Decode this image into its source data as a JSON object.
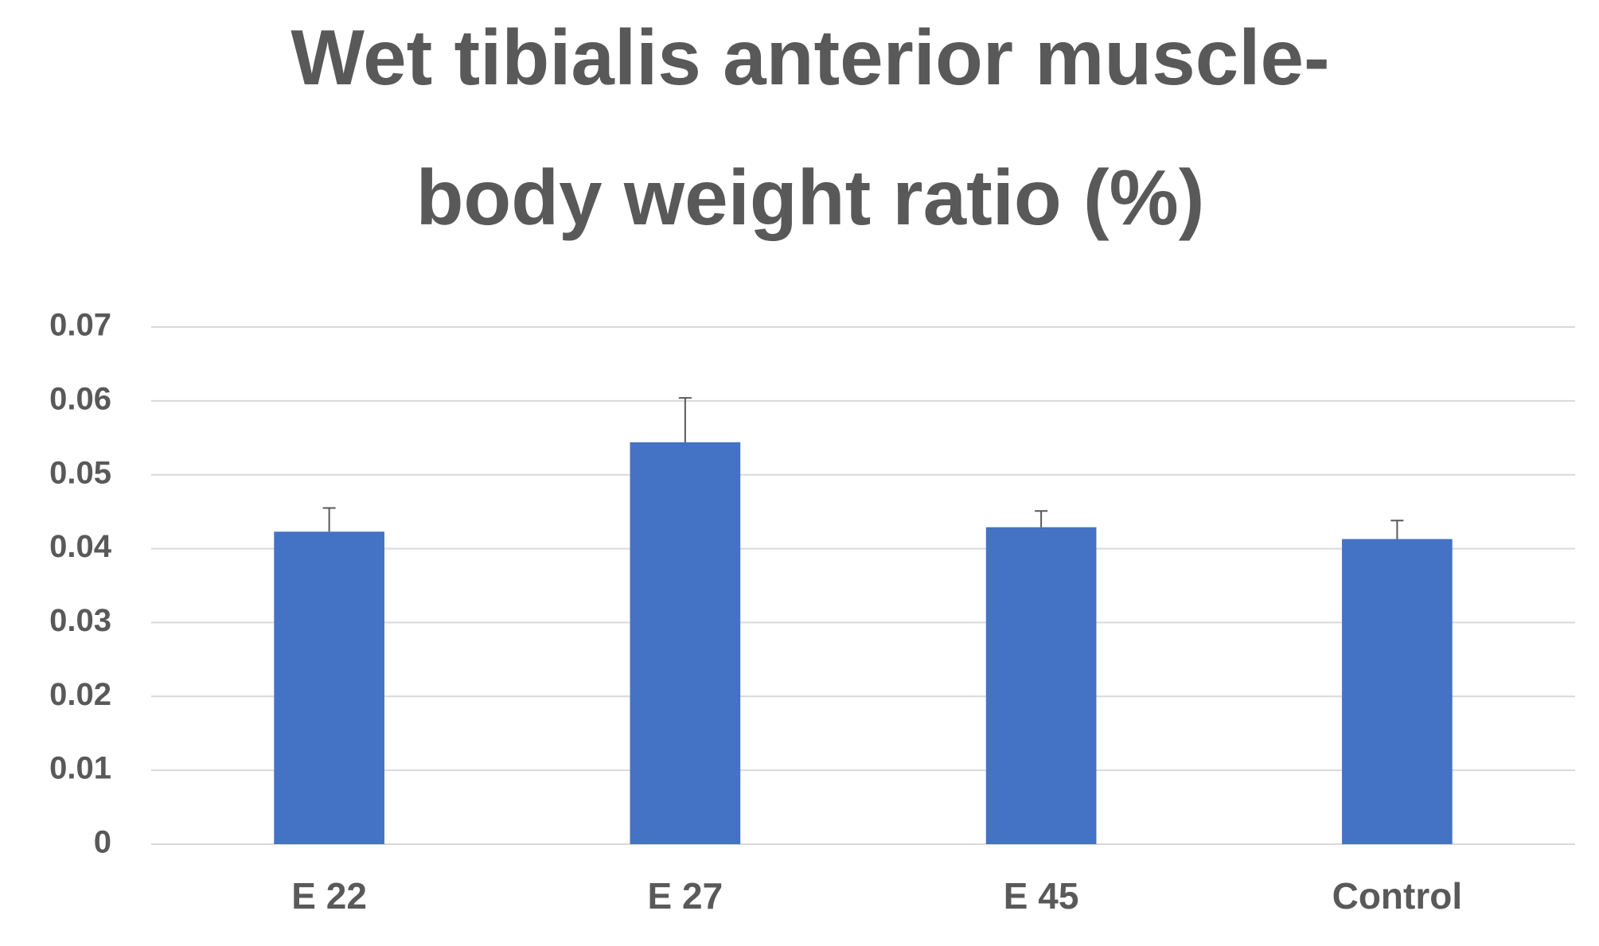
{
  "chart_data": {
    "type": "bar",
    "title": [
      "Wet tibialis anterior muscle-",
      "body weight ratio (%)"
    ],
    "categories": [
      "E 22",
      "E 27",
      "E 45",
      "Control"
    ],
    "values": [
      0.0423,
      0.0544,
      0.0429,
      0.0413
    ],
    "errors": [
      0.0032,
      0.006,
      0.0022,
      0.0025
    ],
    "color": "#4472c4",
    "ylim": [
      0,
      0.07
    ],
    "yticks": [
      0,
      0.01,
      0.02,
      0.03,
      0.04,
      0.05,
      0.06,
      0.07
    ],
    "grid": true
  }
}
